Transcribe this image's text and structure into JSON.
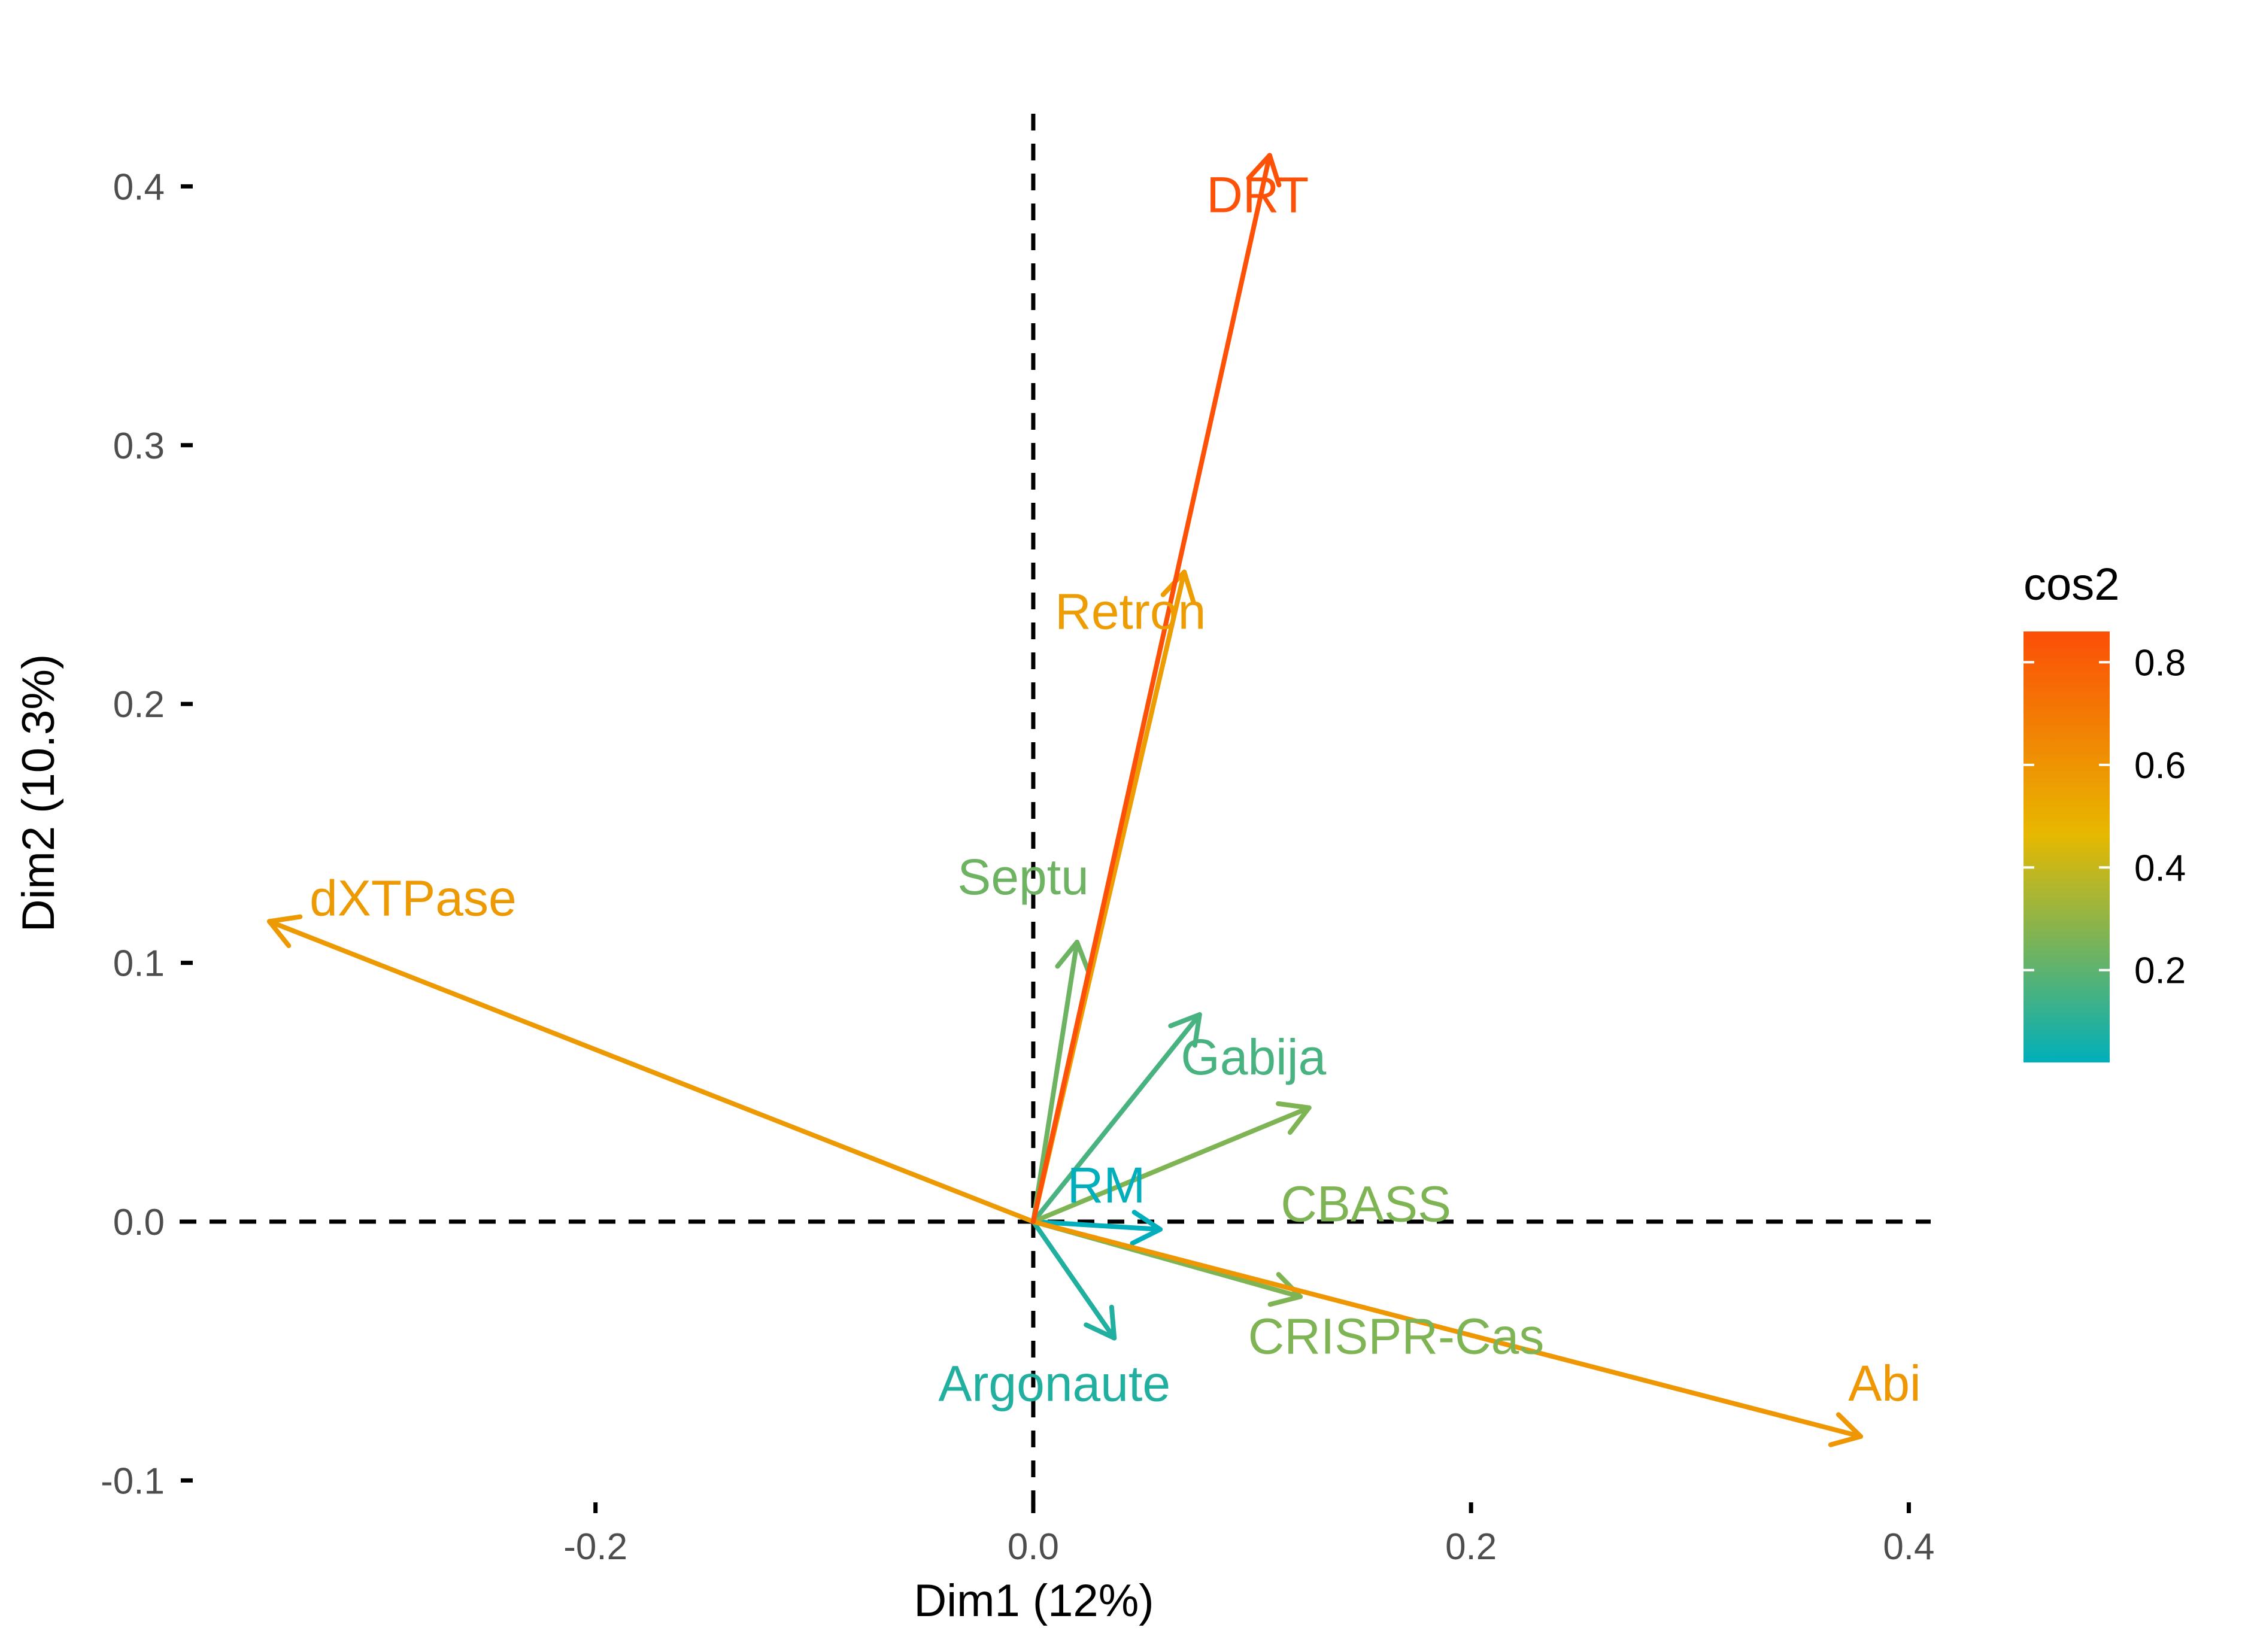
{
  "chart_data": {
    "type": "scatter",
    "subtype": "pca-variable-arrows",
    "xlabel": "Dim1 (12%)",
    "ylabel": "Dim2 (10.3%)",
    "xlim": [
      -0.39,
      0.41
    ],
    "ylim": [
      -0.105,
      0.435
    ],
    "x_ticks": [
      -0.2,
      0.0,
      0.2,
      0.4
    ],
    "x_tick_labels": [
      "-0.2",
      "0.0",
      "0.2",
      "0.4"
    ],
    "y_ticks": [
      -0.1,
      0.0,
      0.1,
      0.2,
      0.3,
      0.4
    ],
    "y_tick_labels": [
      "-0.1",
      "0.0",
      "0.1",
      "0.2",
      "0.3",
      "0.4"
    ],
    "grid": false,
    "reference_lines": [
      "x = 0 (dashed)",
      "y = 0 (dashed)"
    ],
    "variables": [
      {
        "name": "DRT",
        "x": 0.108,
        "y": 0.412,
        "cos2": 0.85
      },
      {
        "name": "Retron",
        "x": 0.069,
        "y": 0.251,
        "cos2": 0.55
      },
      {
        "name": "dXTPase",
        "x": -0.349,
        "y": 0.116,
        "cos2": 0.56
      },
      {
        "name": "Abi",
        "x": 0.378,
        "y": -0.083,
        "cos2": 0.57
      },
      {
        "name": "Septu",
        "x": 0.02,
        "y": 0.108,
        "cos2": 0.22
      },
      {
        "name": "Gabija",
        "x": 0.076,
        "y": 0.08,
        "cos2": 0.15
      },
      {
        "name": "CBASS",
        "x": 0.126,
        "y": 0.044,
        "cos2": 0.25
      },
      {
        "name": "RM",
        "x": 0.058,
        "y": -0.003,
        "cos2": 0.02
      },
      {
        "name": "CRISPR-Cas",
        "x": 0.122,
        "y": -0.029,
        "cos2": 0.25
      },
      {
        "name": "Argonaute",
        "x": 0.037,
        "y": -0.045,
        "cos2": 0.08
      }
    ],
    "legend": {
      "title": "cos2",
      "placement": "right",
      "range": [
        0.02,
        0.86
      ],
      "ticks": [
        0.8,
        0.6,
        0.4,
        0.2
      ],
      "tick_labels": [
        "0.8",
        "0.6",
        "0.4",
        "0.2"
      ],
      "gradient_colors": [
        "#00AFBB",
        "#E7B800",
        "#FC4E07"
      ]
    }
  }
}
